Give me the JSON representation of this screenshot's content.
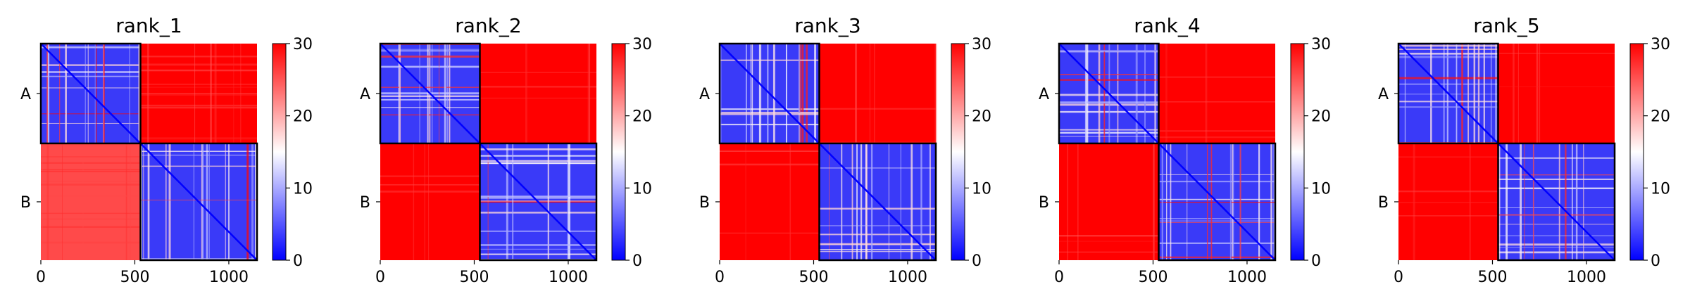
{
  "chart_data": [
    {
      "type": "heatmap",
      "title": "rank_1",
      "xticks": [
        0,
        500,
        1000
      ],
      "xlim": [
        0,
        1150
      ],
      "yticks": [
        "A",
        "B"
      ],
      "block_boundary": 530,
      "colorbar": {
        "ticks": [
          0,
          10,
          20,
          30
        ],
        "range": [
          0,
          30
        ],
        "colormap": "bwr"
      },
      "blocks": [
        {
          "row": "A",
          "col": "A",
          "level": "low (blue), with white stripes"
        },
        {
          "row": "A",
          "col": "B",
          "level": "high (red, ~30)"
        },
        {
          "row": "B",
          "col": "A",
          "level": "high (red, slightly lighter ~25-30)"
        },
        {
          "row": "B",
          "col": "B",
          "level": "low (blue), with red/white stripes"
        }
      ]
    },
    {
      "type": "heatmap",
      "title": "rank_2",
      "xticks": [
        0,
        500,
        1000
      ],
      "xlim": [
        0,
        1150
      ],
      "yticks": [
        "A",
        "B"
      ],
      "block_boundary": 530,
      "colorbar": {
        "ticks": [
          0,
          10,
          20,
          30
        ],
        "range": [
          0,
          30
        ],
        "colormap": "bwr"
      },
      "blocks": [
        {
          "row": "A",
          "col": "A",
          "level": "low (blue)"
        },
        {
          "row": "A",
          "col": "B",
          "level": "high (red, ~30)"
        },
        {
          "row": "B",
          "col": "A",
          "level": "high (red, ~30)"
        },
        {
          "row": "B",
          "col": "B",
          "level": "low (blue)"
        }
      ]
    },
    {
      "type": "heatmap",
      "title": "rank_3",
      "xticks": [
        0,
        500,
        1000
      ],
      "xlim": [
        0,
        1150
      ],
      "yticks": [
        "A",
        "B"
      ],
      "block_boundary": 530,
      "colorbar": {
        "ticks": [
          0,
          10,
          20,
          30
        ],
        "range": [
          0,
          30
        ],
        "colormap": "bwr"
      },
      "blocks": [
        {
          "row": "A",
          "col": "A",
          "level": "low (blue)"
        },
        {
          "row": "A",
          "col": "B",
          "level": "high (red, 30)"
        },
        {
          "row": "B",
          "col": "A",
          "level": "high (red, 30)"
        },
        {
          "row": "B",
          "col": "B",
          "level": "low (blue)"
        }
      ]
    },
    {
      "type": "heatmap",
      "title": "rank_4",
      "xticks": [
        0,
        500,
        1000
      ],
      "xlim": [
        0,
        1150
      ],
      "yticks": [
        "A",
        "B"
      ],
      "block_boundary": 530,
      "colorbar": {
        "ticks": [
          0,
          10,
          20,
          30
        ],
        "range": [
          0,
          30
        ],
        "colormap": "bwr"
      },
      "blocks": [
        {
          "row": "A",
          "col": "A",
          "level": "low (blue)"
        },
        {
          "row": "A",
          "col": "B",
          "level": "high (red, 30)"
        },
        {
          "row": "B",
          "col": "A",
          "level": "high (red, 30)"
        },
        {
          "row": "B",
          "col": "B",
          "level": "low (blue)"
        }
      ]
    },
    {
      "type": "heatmap",
      "title": "rank_5",
      "xticks": [
        0,
        500,
        1000
      ],
      "xlim": [
        0,
        1150
      ],
      "yticks": [
        "A",
        "B"
      ],
      "block_boundary": 530,
      "colorbar": {
        "ticks": [
          0,
          10,
          20,
          30
        ],
        "range": [
          0,
          30
        ],
        "colormap": "bwr"
      },
      "blocks": [
        {
          "row": "A",
          "col": "A",
          "level": "low (blue)"
        },
        {
          "row": "A",
          "col": "B",
          "level": "high (red, 30)"
        },
        {
          "row": "B",
          "col": "A",
          "level": "high (red, 30)"
        },
        {
          "row": "B",
          "col": "B",
          "level": "low (blue)"
        }
      ]
    }
  ],
  "colors": {
    "high": "#ff0000",
    "mid": "#ffffff",
    "low": "#0000ff",
    "block_border": "#000000"
  }
}
